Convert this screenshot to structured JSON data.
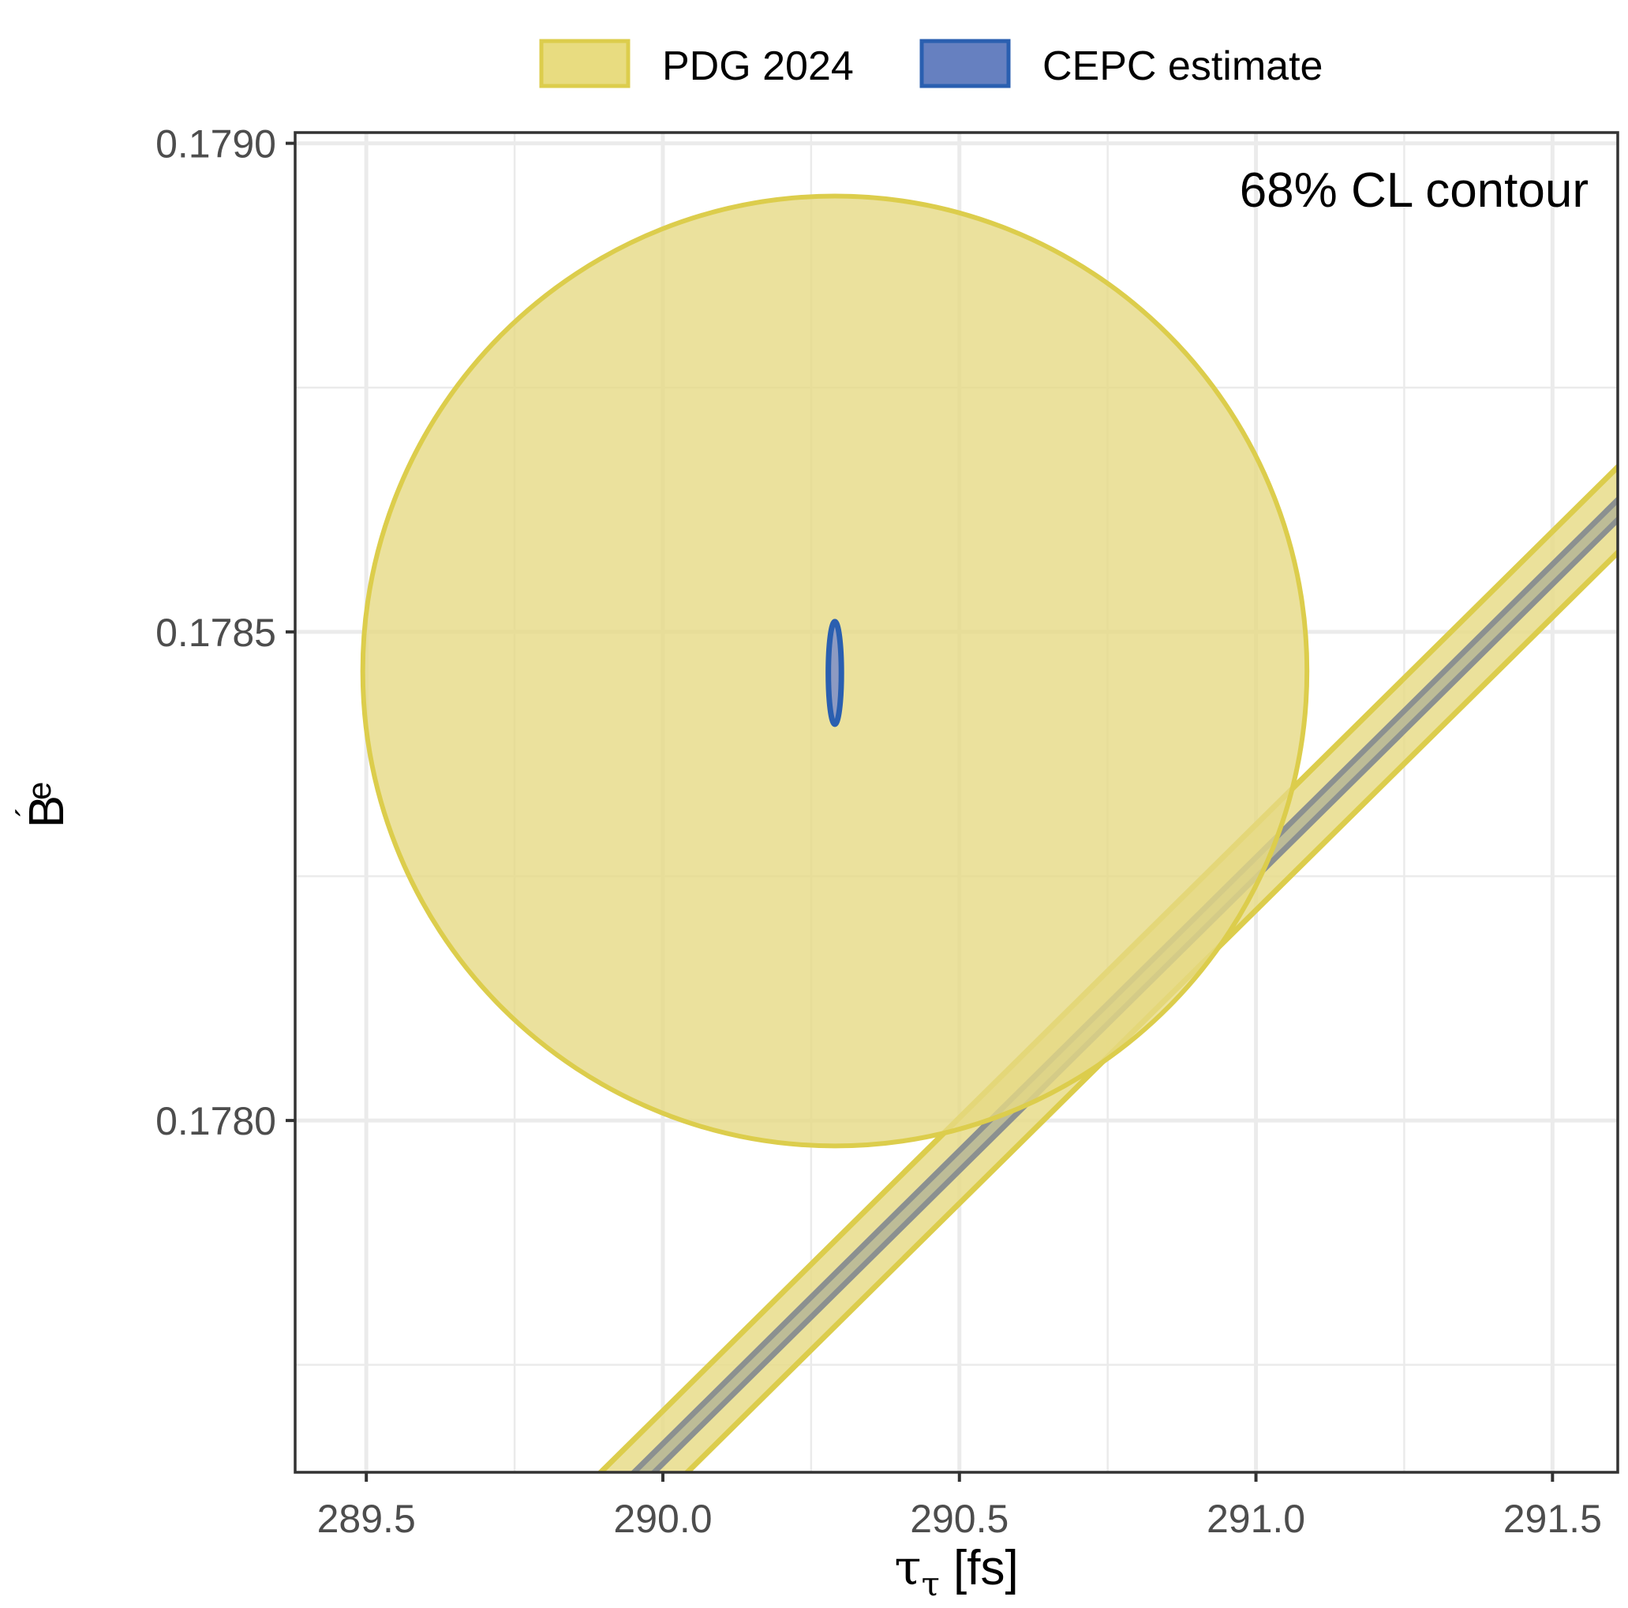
{
  "chart_data": {
    "type": "contour",
    "annotation": "68% CL contour",
    "xlabel": "τ_τ [fs]",
    "xlabel_main": "τ",
    "xlabel_sub": "τ",
    "xlabel_unit": " [fs]",
    "ylabel": "B´_e",
    "ylabel_main": "B",
    "ylabel_prime": "´",
    "ylabel_sub": "e",
    "xlim": [
      289.38,
      291.61
    ],
    "ylim": [
      0.17764,
      0.179011
    ],
    "xticks": [
      289.5,
      290.0,
      290.5,
      291.0,
      291.5
    ],
    "xtick_labels": [
      "289.5",
      "290.0",
      "290.5",
      "291.0",
      "291.5"
    ],
    "yticks": [
      0.178,
      0.1785,
      0.179
    ],
    "ytick_labels": [
      "0.1780",
      "0.1785",
      "0.1790"
    ],
    "grid": true,
    "legend": {
      "placement": "top",
      "entries": [
        {
          "label": "PDG 2024",
          "fill": "#e8dc80",
          "stroke": "#dccd4c"
        },
        {
          "label": "CEPC estimate",
          "fill": "#6680c0",
          "stroke": "#2a5fb0"
        }
      ]
    },
    "ellipses": [
      {
        "series": "PDG 2024",
        "cx": 290.29,
        "cy": 0.17846,
        "rx": 0.796,
        "ry": 0.000486,
        "fill": "#e6da85",
        "stroke": "#dccd4c"
      },
      {
        "series": "CEPC estimate",
        "cx": 290.29,
        "cy": 0.178458,
        "rx": 0.011,
        "ry": 5.25e-05,
        "fill": "#8d9ac2",
        "stroke": "#2a5fb0"
      }
    ],
    "bands": [
      {
        "series": "PDG 2024",
        "slope": 0.0006,
        "x_ref": 291.61,
        "y_ref": 0.178625,
        "half_width_x": 0.073,
        "fill": "#e8dc8a",
        "stroke": "#dccd4c"
      },
      {
        "series": "CEPC estimate",
        "slope": 0.0006,
        "x_ref": 291.61,
        "y_ref": 0.178625,
        "half_width_x": 0.017,
        "fill": "#b5b596",
        "stroke": "#8b9090"
      }
    ]
  }
}
